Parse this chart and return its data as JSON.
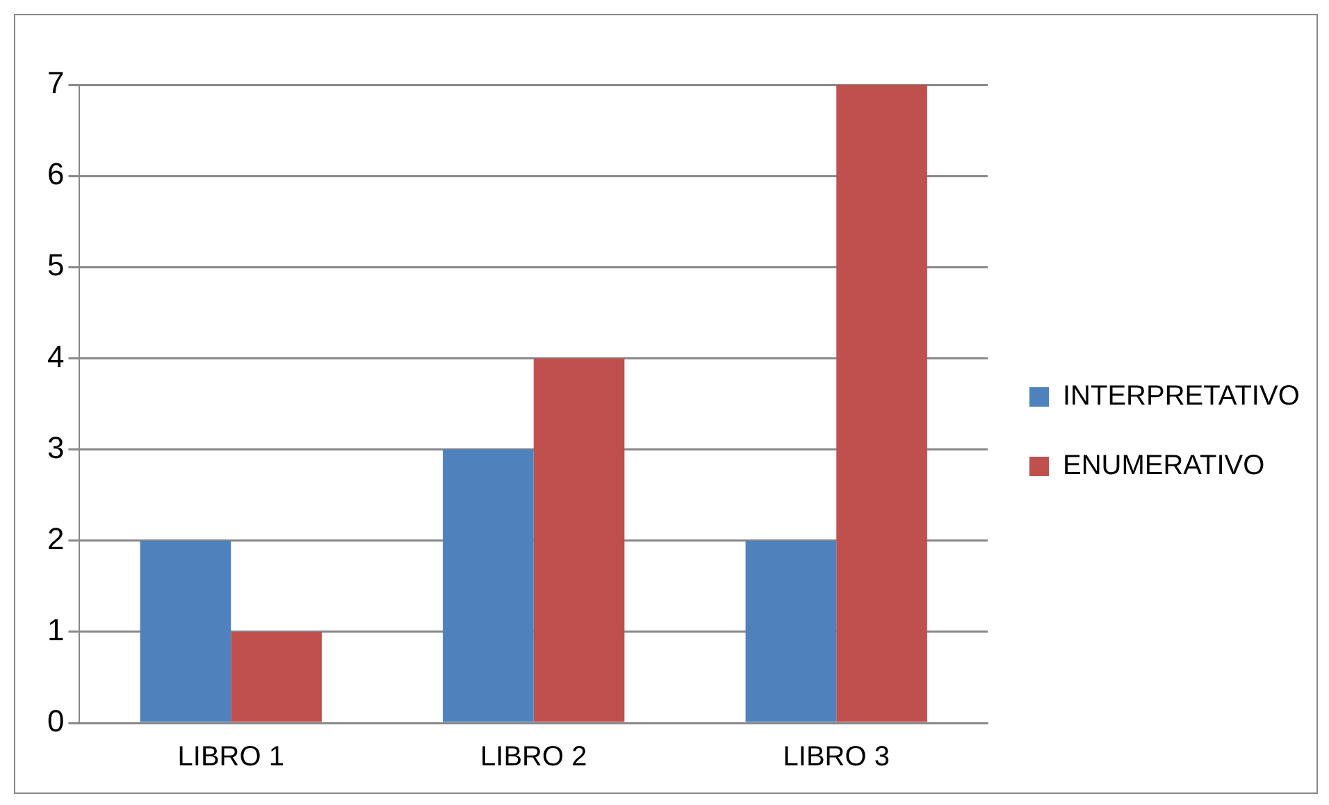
{
  "chart_data": {
    "type": "bar",
    "categories": [
      "LIBRO 1",
      "LIBRO 2",
      "LIBRO 3"
    ],
    "series": [
      {
        "name": "INTERPRETATIVO",
        "color": "#4f81bd",
        "values": [
          2,
          3,
          2
        ]
      },
      {
        "name": "ENUMERATIVO",
        "color": "#c0504d",
        "values": [
          1,
          4,
          7
        ]
      }
    ],
    "ylim": [
      0,
      7
    ],
    "yticks": [
      0,
      1,
      2,
      3,
      4,
      5,
      6,
      7
    ],
    "grid": "y",
    "legend": "right"
  }
}
